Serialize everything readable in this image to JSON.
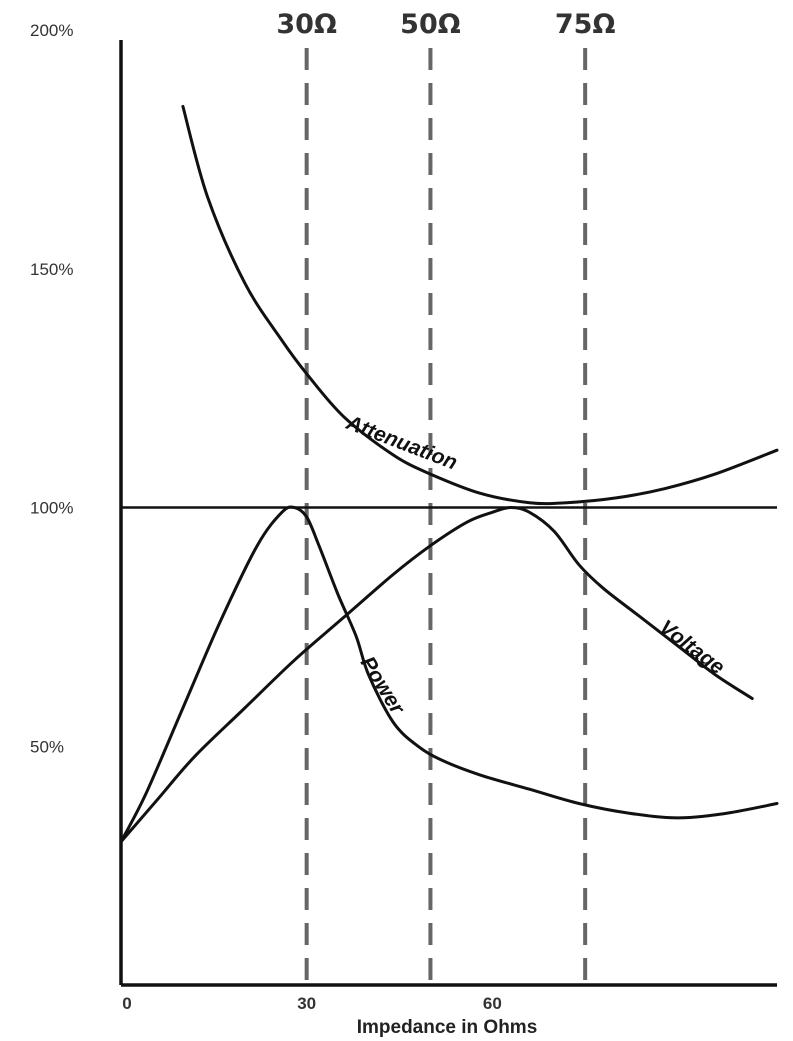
{
  "chart_data": {
    "type": "line",
    "title": "",
    "xlabel": "Impedance in Ohms",
    "ylabel": "",
    "xlim": [
      0,
      106
    ],
    "ylim": [
      0,
      200
    ],
    "x_ticks": [
      {
        "value": 0,
        "label": "0"
      },
      {
        "value": 30,
        "label": "30"
      },
      {
        "value": 60,
        "label": "60"
      }
    ],
    "y_ticks": [
      {
        "value": 200,
        "label": "200%"
      },
      {
        "value": 150,
        "label": "150%"
      },
      {
        "value": 100,
        "label": "100%"
      },
      {
        "value": 50,
        "label": "50%"
      }
    ],
    "reference_lines": [
      {
        "x": 30,
        "label": "30Ω"
      },
      {
        "x": 50,
        "label": "50Ω"
      },
      {
        "x": 75,
        "label": "75Ω"
      }
    ],
    "horizontal_line": {
      "y": 100
    },
    "series": [
      {
        "name": "Attenuation",
        "x": [
          10,
          14,
          20,
          26,
          30,
          36,
          44,
          50,
          58,
          66,
          72,
          80,
          88,
          96,
          106
        ],
        "y": [
          184,
          165,
          147,
          135,
          128,
          119,
          111,
          107,
          103,
          101,
          101,
          102,
          104,
          107,
          112
        ]
      },
      {
        "name": "Power",
        "x": [
          0,
          4,
          10,
          16,
          22,
          26,
          28,
          30,
          32,
          35,
          38,
          40,
          44,
          48,
          52,
          58,
          66,
          74,
          82,
          90,
          98,
          106
        ],
        "y": [
          30,
          40,
          58,
          76,
          92,
          99,
          100,
          98,
          92,
          82,
          73,
          65,
          55,
          50,
          47,
          44,
          41,
          38,
          36,
          35,
          36,
          38
        ]
      },
      {
        "name": "Voltage",
        "x": [
          0,
          6,
          12,
          20,
          28,
          36,
          44,
          50,
          56,
          60,
          63,
          66,
          70,
          74,
          78,
          84,
          90,
          96,
          102
        ],
        "y": [
          30,
          39,
          48,
          58,
          68,
          77,
          86,
          92,
          97,
          99,
          100,
          99,
          95,
          88,
          83,
          77,
          71,
          65,
          60
        ]
      }
    ]
  }
}
